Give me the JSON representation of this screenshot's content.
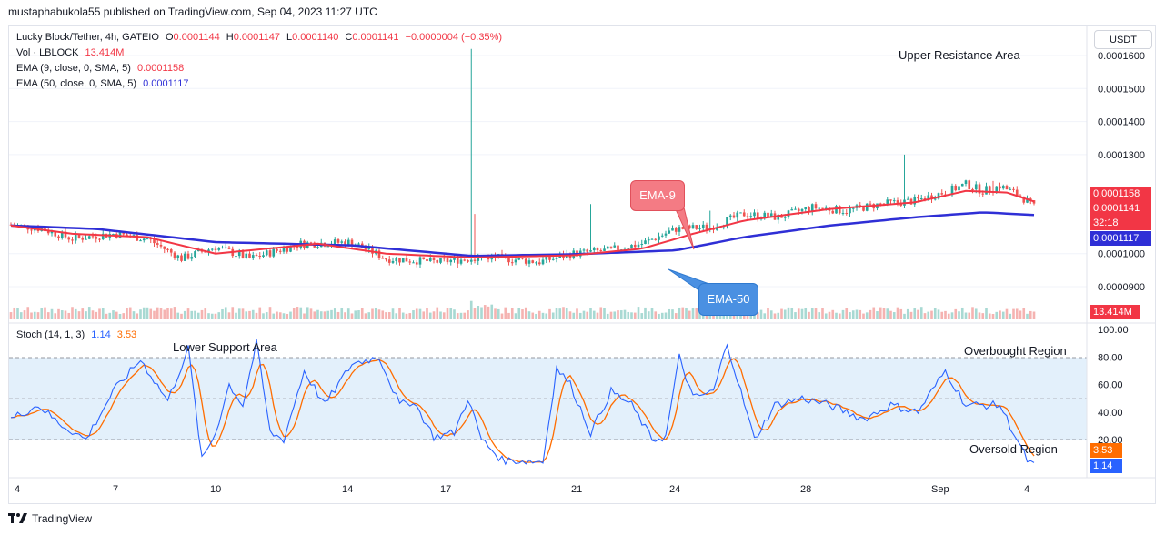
{
  "header": {
    "publisher": "mustaphabukola55 published on TradingView.com, Sep 04, 2023 11:27 UTC",
    "currency_button": "USDT"
  },
  "legend": {
    "symbol": "Lucky Block/Tether, 4h, GATEIO",
    "ohlc": {
      "o_label": "O",
      "o": "0.0001144",
      "h_label": "H",
      "h": "0.0001147",
      "l_label": "L",
      "l": "0.0001140",
      "c_label": "C",
      "c": "0.0001141",
      "change": "−0.0000004 (−0.35%)"
    },
    "volume_label": "Vol · LBLOCK",
    "volume_value": "13.414M",
    "ema9_label": "EMA (9, close, 0, SMA, 5)",
    "ema9_value": "0.0001158",
    "ema50_label": "EMA (50, close, 0, SMA, 5)",
    "ema50_value": "0.0001117",
    "stoch_label": "Stoch (14, 1, 3)",
    "stoch_k": "1.14",
    "stoch_d": "3.53"
  },
  "annotations": {
    "upper_resistance": "Upper Resistance Area",
    "lower_support": "Lower Support Area",
    "overbought": "Overbought Region",
    "oversold": "Oversold Region",
    "ema9_callout": "EMA-9",
    "ema50_callout": "EMA-50"
  },
  "price_tags": {
    "ema9": "0.0001158",
    "close": "0.0001141",
    "countdown": "32:18",
    "ema50": "0.0001117",
    "volume": "13.414M",
    "stoch_d": "3.53",
    "stoch_k": "1.14"
  },
  "colors": {
    "up": "#26a69a",
    "down": "#ef5350",
    "ema9": "#f23645",
    "ema50": "#2f2fd6",
    "stoch_k": "#2962ff",
    "stoch_d": "#ff6d00",
    "stoch_band": "#e3f0fb"
  },
  "footer": {
    "brand": "TradingView"
  },
  "chart_data": {
    "type": "candlestick",
    "timeframe": "4h",
    "x_ticks": [
      "4",
      "7",
      "10",
      "14",
      "17",
      "21",
      "24",
      "28",
      "Sep",
      "4"
    ],
    "price_axis": {
      "ticks": [
        "0.0001600",
        "0.0001500",
        "0.0001400",
        "0.0001300",
        "0.0001000",
        "0.0000900"
      ],
      "ylim": [
        8.45e-05,
        0.000163
      ]
    },
    "stoch_axis": {
      "ticks": [
        "100.00",
        "80.00",
        "60.00",
        "40.00",
        "20.00"
      ],
      "ylim": [
        0,
        100
      ],
      "overbought": 80,
      "oversold": 20
    },
    "price_path_anchors": [
      [
        0,
        0.0001088
      ],
      [
        9,
        0.0001075
      ],
      [
        18,
        0.0001045
      ],
      [
        30,
        0.000106
      ],
      [
        40,
        0.0001045
      ],
      [
        50,
        9.85e-05
      ],
      [
        60,
        0.000102
      ],
      [
        70,
        9.85e-05
      ],
      [
        85,
        0.000103
      ],
      [
        100,
        0.0001035
      ],
      [
        110,
        9.85e-05
      ],
      [
        125,
        9.75e-05
      ],
      [
        140,
        9.9e-05
      ],
      [
        155,
        9.75e-05
      ],
      [
        165,
        0.0001
      ],
      [
        175,
        0.000101
      ],
      [
        185,
        0.000103
      ],
      [
        195,
        0.0001075
      ],
      [
        205,
        0.000108
      ],
      [
        215,
        0.000112
      ],
      [
        225,
        0.000111
      ],
      [
        235,
        0.000114
      ],
      [
        245,
        0.000113
      ],
      [
        255,
        0.000115
      ],
      [
        265,
        0.000116
      ],
      [
        275,
        0.000119
      ],
      [
        280,
        0.000121
      ],
      [
        285,
        0.000119
      ],
      [
        290,
        0.0001205
      ],
      [
        296,
        0.0001175
      ],
      [
        300,
        0.0001141
      ]
    ],
    "price_spikes": [
      [
        135,
        0.000162
      ],
      [
        136,
        0.000112
      ],
      [
        170,
        0.000115
      ],
      [
        205,
        0.000113
      ],
      [
        262,
        0.00013
      ],
      [
        288,
        0.000122
      ]
    ],
    "ema9_anchors": [
      [
        0,
        0.0001085
      ],
      [
        18,
        0.000106
      ],
      [
        40,
        0.000105
      ],
      [
        60,
        0.0001
      ],
      [
        90,
        0.000103
      ],
      [
        110,
        0.0001
      ],
      [
        135,
        9.88e-05
      ],
      [
        165,
        9.95e-05
      ],
      [
        185,
        0.0001015
      ],
      [
        200,
        0.000106
      ],
      [
        215,
        0.00011
      ],
      [
        240,
        0.0001135
      ],
      [
        265,
        0.0001155
      ],
      [
        280,
        0.000119
      ],
      [
        292,
        0.0001185
      ],
      [
        300,
        0.0001158
      ]
    ],
    "ema50_anchors": [
      [
        0,
        0.0001085
      ],
      [
        25,
        0.0001075
      ],
      [
        60,
        0.0001035
      ],
      [
        100,
        0.0001025
      ],
      [
        135,
        9.93e-05
      ],
      [
        165,
        9.98e-05
      ],
      [
        195,
        0.000101
      ],
      [
        215,
        0.000105
      ],
      [
        240,
        0.0001085
      ],
      [
        265,
        0.000111
      ],
      [
        285,
        0.0001125
      ],
      [
        300,
        0.0001117
      ]
    ],
    "stoch_k_anchors": [
      [
        0,
        35
      ],
      [
        8,
        45
      ],
      [
        14,
        32
      ],
      [
        22,
        20
      ],
      [
        30,
        55
      ],
      [
        38,
        78
      ],
      [
        46,
        48
      ],
      [
        52,
        86
      ],
      [
        56,
        5
      ],
      [
        60,
        25
      ],
      [
        64,
        60
      ],
      [
        68,
        45
      ],
      [
        72,
        90
      ],
      [
        76,
        25
      ],
      [
        80,
        20
      ],
      [
        86,
        70
      ],
      [
        92,
        45
      ],
      [
        100,
        75
      ],
      [
        108,
        80
      ],
      [
        114,
        45
      ],
      [
        118,
        48
      ],
      [
        124,
        22
      ],
      [
        130,
        25
      ],
      [
        134,
        50
      ],
      [
        138,
        20
      ],
      [
        144,
        5
      ],
      [
        156,
        4
      ],
      [
        160,
        72
      ],
      [
        164,
        60
      ],
      [
        170,
        25
      ],
      [
        176,
        55
      ],
      [
        182,
        45
      ],
      [
        188,
        20
      ],
      [
        192,
        22
      ],
      [
        196,
        80
      ],
      [
        200,
        50
      ],
      [
        206,
        55
      ],
      [
        210,
        90
      ],
      [
        214,
        55
      ],
      [
        218,
        20
      ],
      [
        224,
        45
      ],
      [
        232,
        50
      ],
      [
        240,
        45
      ],
      [
        250,
        35
      ],
      [
        258,
        45
      ],
      [
        266,
        40
      ],
      [
        274,
        70
      ],
      [
        280,
        45
      ],
      [
        290,
        45
      ],
      [
        298,
        5
      ],
      [
        300,
        1
      ]
    ],
    "volume_note": "last bar 13.414M"
  }
}
